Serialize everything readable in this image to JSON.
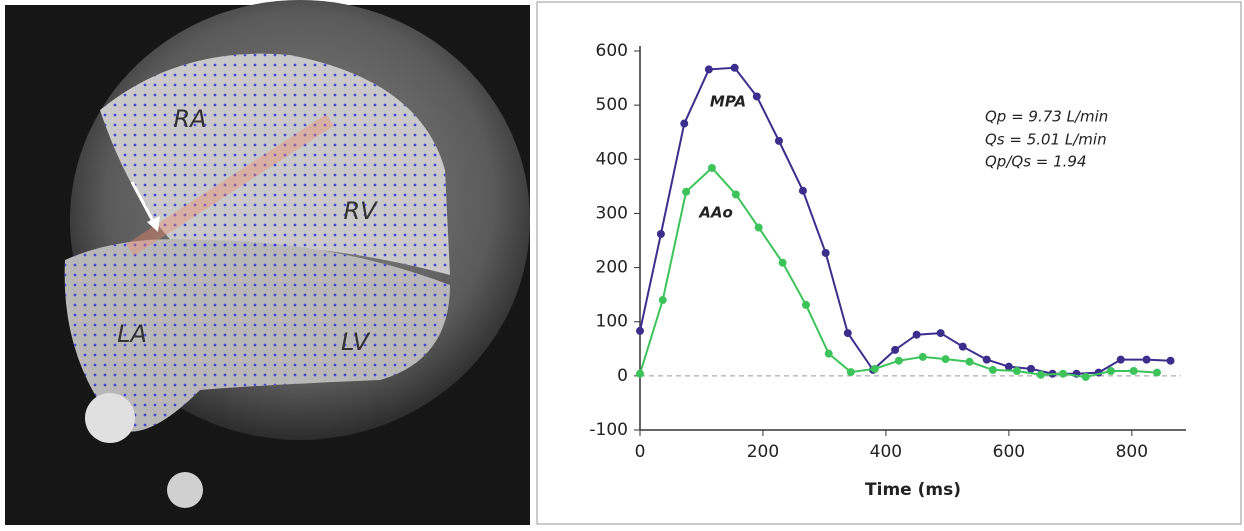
{
  "image_labels": [
    "RA",
    "RV",
    "LA",
    "LV"
  ],
  "chart_data": {
    "type": "line",
    "xlabel": "Time (ms)",
    "xlim": [
      0,
      880
    ],
    "xticks": [
      0,
      200,
      400,
      600,
      800
    ],
    "ylim": [
      -100,
      600
    ],
    "yticks": [
      -100,
      0,
      100,
      200,
      300,
      400,
      500,
      600
    ],
    "annotations": [
      "MPA",
      "AAo",
      "Qp = 9.73 L/min",
      "Qs = 5.01 L/min",
      "Qp/Qs = 1.94"
    ],
    "series": [
      {
        "name": "MPA",
        "color": "#3b2e8c",
        "x": [
          0,
          34,
          72,
          112,
          154,
          190,
          226,
          265,
          302,
          338,
          379,
          415,
          450,
          489,
          525,
          564,
          600,
          636,
          671,
          710,
          746,
          782,
          824,
          863
        ],
        "values": [
          83,
          262,
          466,
          566,
          569,
          516,
          434,
          342,
          227,
          79,
          11,
          48,
          76,
          79,
          54,
          30,
          17,
          13,
          4,
          4,
          6,
          30,
          30,
          28
        ]
      },
      {
        "name": "AAo",
        "color": "#3cc45a",
        "x": [
          0,
          37,
          75,
          117,
          156,
          193,
          232,
          270,
          307,
          343,
          382,
          421,
          460,
          497,
          536,
          574,
          613,
          652,
          688,
          725,
          766,
          803,
          841
        ],
        "values": [
          4,
          140,
          340,
          384,
          335,
          274,
          209,
          131,
          41,
          7,
          13,
          28,
          35,
          31,
          26,
          11,
          9,
          2,
          4,
          -2,
          9,
          9,
          6
        ]
      }
    ]
  }
}
